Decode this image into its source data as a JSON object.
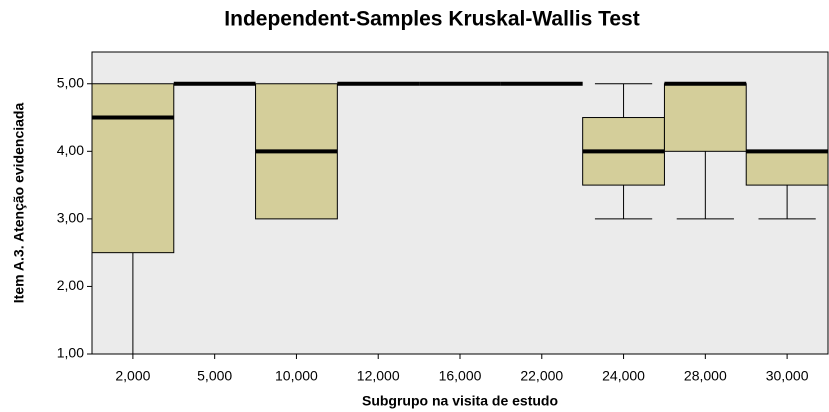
{
  "chart_data": {
    "type": "box",
    "title": "Independent-Samples Kruskal-Wallis Test",
    "xlabel": "Subgrupo na visita de estudo",
    "ylabel": "Item A.3. Atenção evidenciada",
    "categories": [
      "2,000",
      "5,000",
      "10,000",
      "12,000",
      "16,000",
      "22,000",
      "24,000",
      "28,000",
      "30,000"
    ],
    "boxes": [
      {
        "min": 1,
        "q1": 2.5,
        "median": 4.5,
        "q3": 5,
        "max": 5
      },
      {
        "min": 5,
        "q1": 5,
        "median": 5,
        "q3": 5,
        "max": 5
      },
      {
        "min": 3,
        "q1": 3,
        "median": 4,
        "q3": 5,
        "max": 5
      },
      {
        "min": 5,
        "q1": 5,
        "median": 5,
        "q3": 5,
        "max": 5
      },
      {
        "min": 5,
        "q1": 5,
        "median": 5,
        "q3": 5,
        "max": 5
      },
      {
        "min": 5,
        "q1": 5,
        "median": 5,
        "q3": 5,
        "max": 5
      },
      {
        "min": 3,
        "q1": 3.5,
        "median": 4,
        "q3": 4.5,
        "max": 5
      },
      {
        "min": 3,
        "q1": 4,
        "median": 5,
        "q3": 5,
        "max": 5
      },
      {
        "min": 3,
        "q1": 3.5,
        "median": 4,
        "q3": 4,
        "max": 4
      }
    ],
    "color": "#d4ce9a",
    "ylim": [
      1,
      5.47
    ],
    "yticks": [
      {
        "value": 1,
        "label": "1,00"
      },
      {
        "value": 2,
        "label": "2,00"
      },
      {
        "value": 3,
        "label": "3,00"
      },
      {
        "value": 4,
        "label": "4,00"
      },
      {
        "value": 5,
        "label": "5,00"
      }
    ]
  }
}
